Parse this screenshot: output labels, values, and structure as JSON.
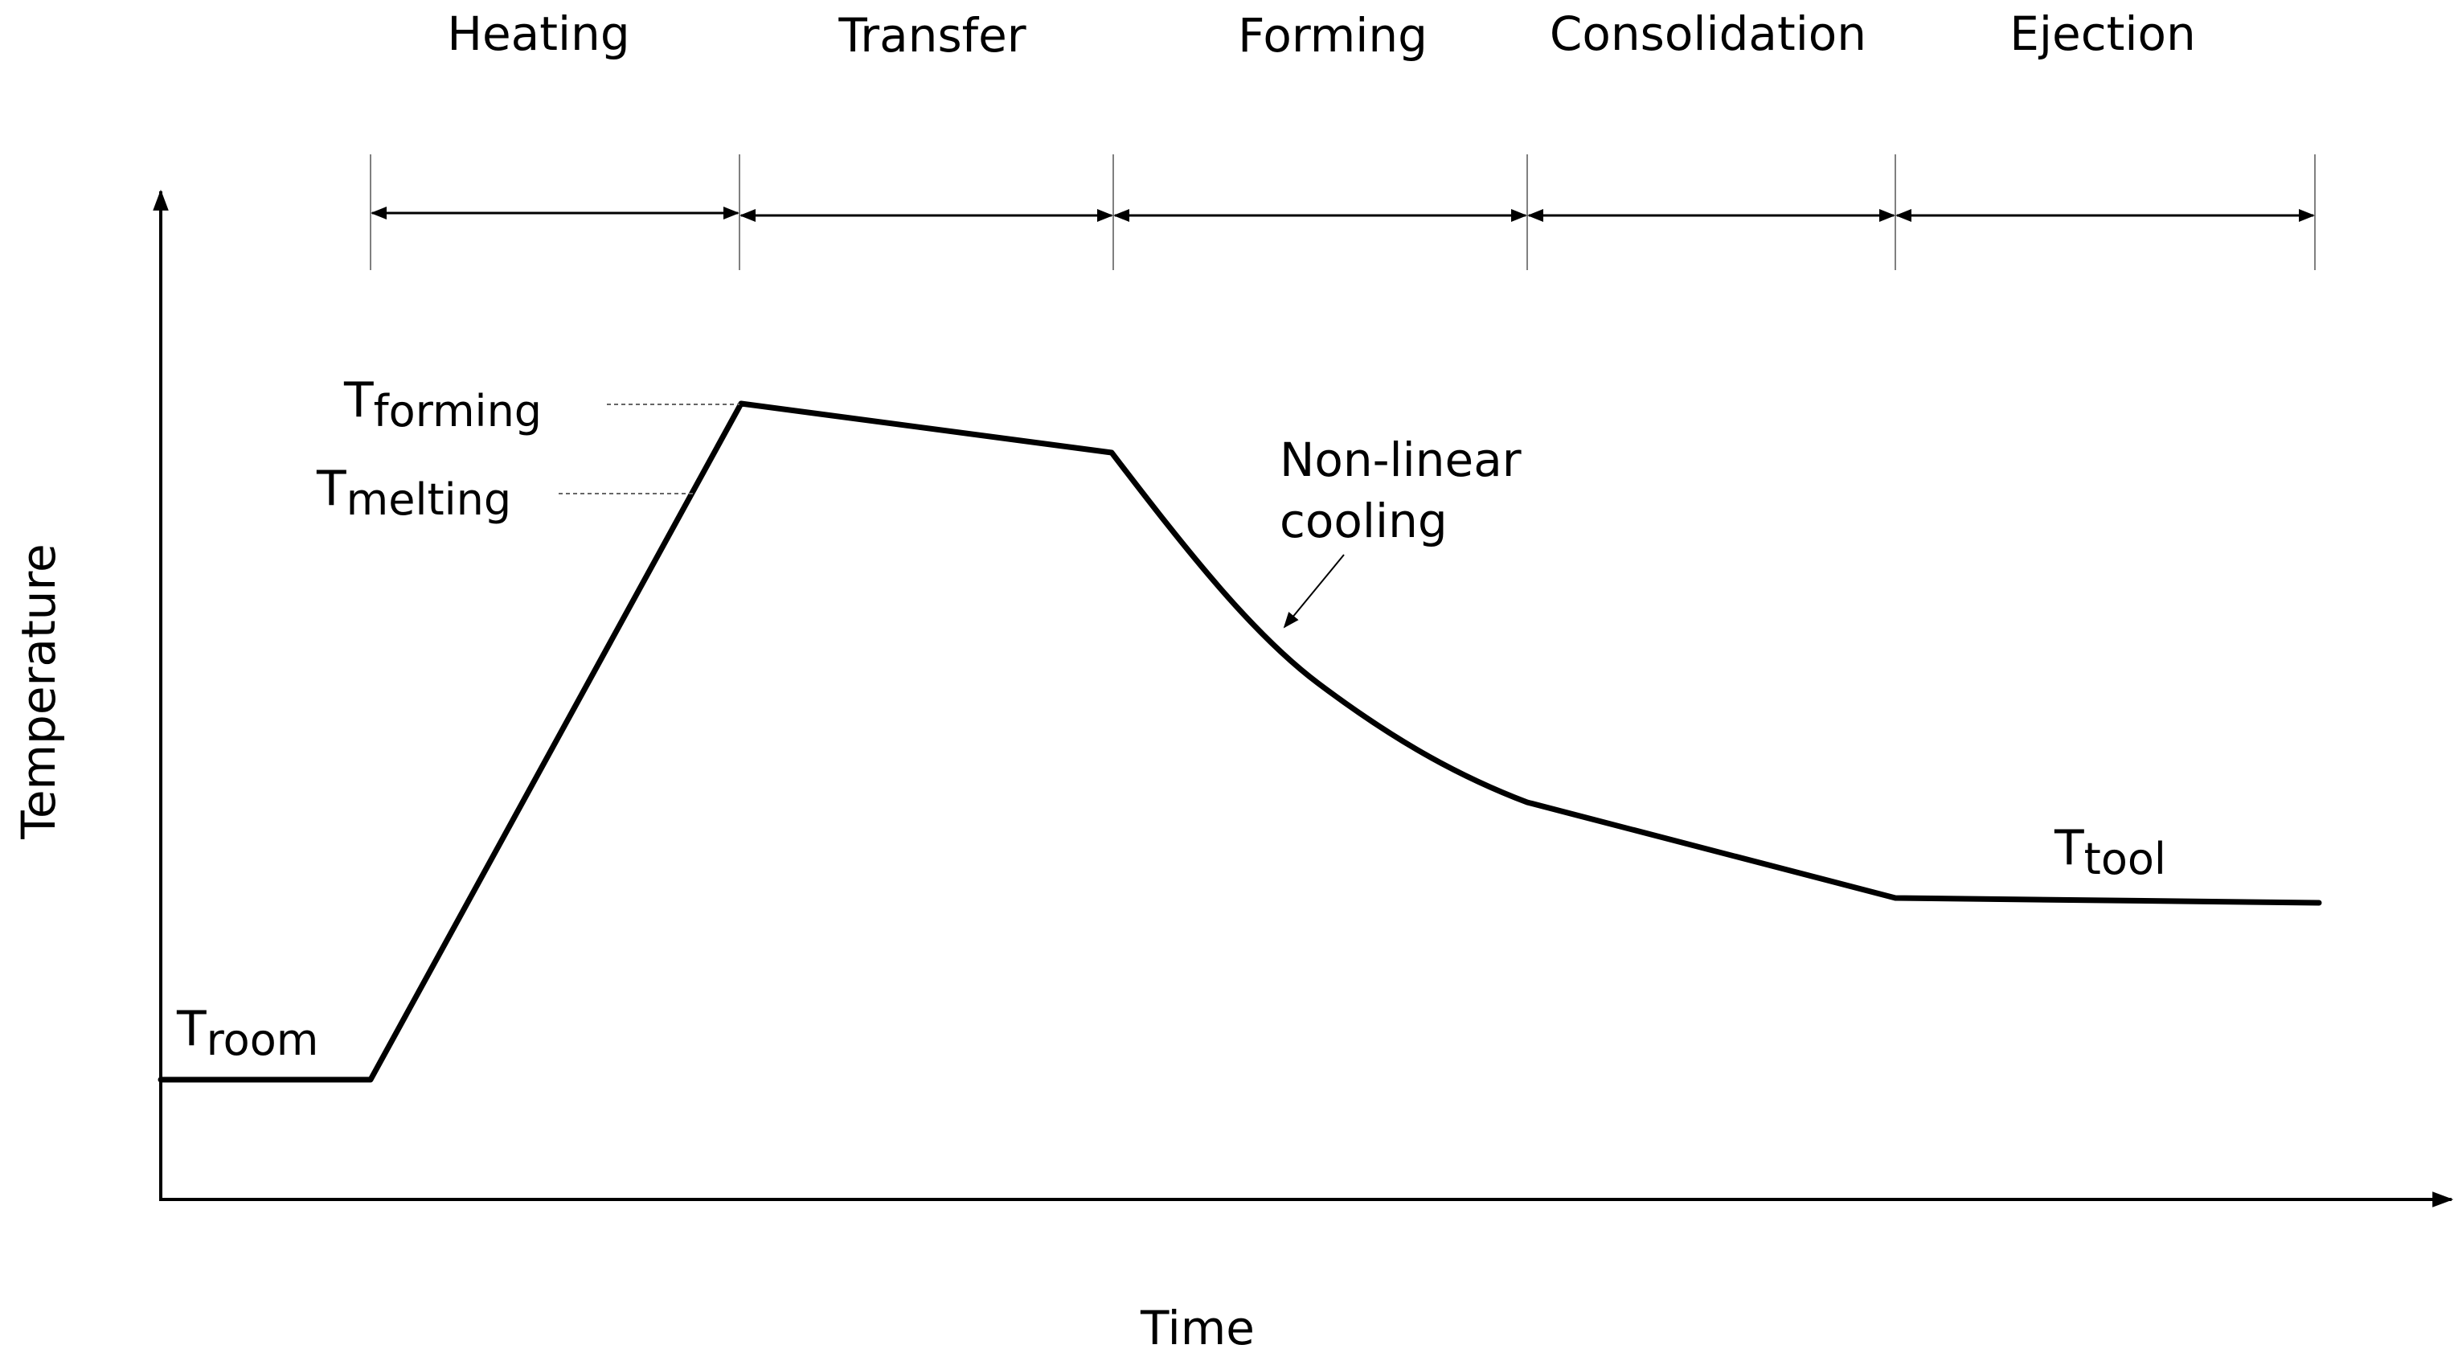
{
  "diagram": {
    "axes": {
      "x_label": "Time",
      "y_label": "Temperature"
    },
    "phases": [
      {
        "name": "Heating"
      },
      {
        "name": "Transfer"
      },
      {
        "name": "Forming"
      },
      {
        "name": "Consolidation"
      },
      {
        "name": "Ejection"
      }
    ],
    "temperature_labels": {
      "forming": {
        "symbol": "T",
        "subscript": "forming"
      },
      "melting": {
        "symbol": "T",
        "subscript": "melting"
      },
      "room": {
        "symbol": "T",
        "subscript": "room"
      },
      "tool": {
        "symbol": "T",
        "subscript": "tool"
      }
    },
    "annotation": {
      "line1": "Non-linear",
      "line2": "cooling"
    },
    "colors": {
      "line": "#000000",
      "guide": "#808080",
      "background": "#ffffff"
    }
  }
}
